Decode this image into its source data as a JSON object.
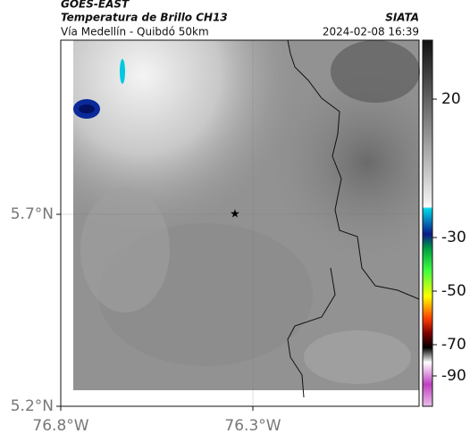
{
  "header": {
    "satellite": "GOES-EAST",
    "product": "Temperatura de Brillo CH13",
    "region": "Vía Medellín - Quibdó 50km",
    "source": "SIATA",
    "datetime": "2024-02-08 16:39"
  },
  "map": {
    "xticks": [
      {
        "value": -76.8,
        "label": "76.8°W"
      },
      {
        "value": -76.3,
        "label": "76.3°W"
      }
    ],
    "yticks": [
      {
        "value": 5.2,
        "label": "5.2°N"
      },
      {
        "value": 5.7,
        "label": "5.7°N"
      }
    ]
  },
  "colorbar": {
    "ticks": [
      20,
      -30,
      -50,
      -70,
      -90
    ]
  }
}
